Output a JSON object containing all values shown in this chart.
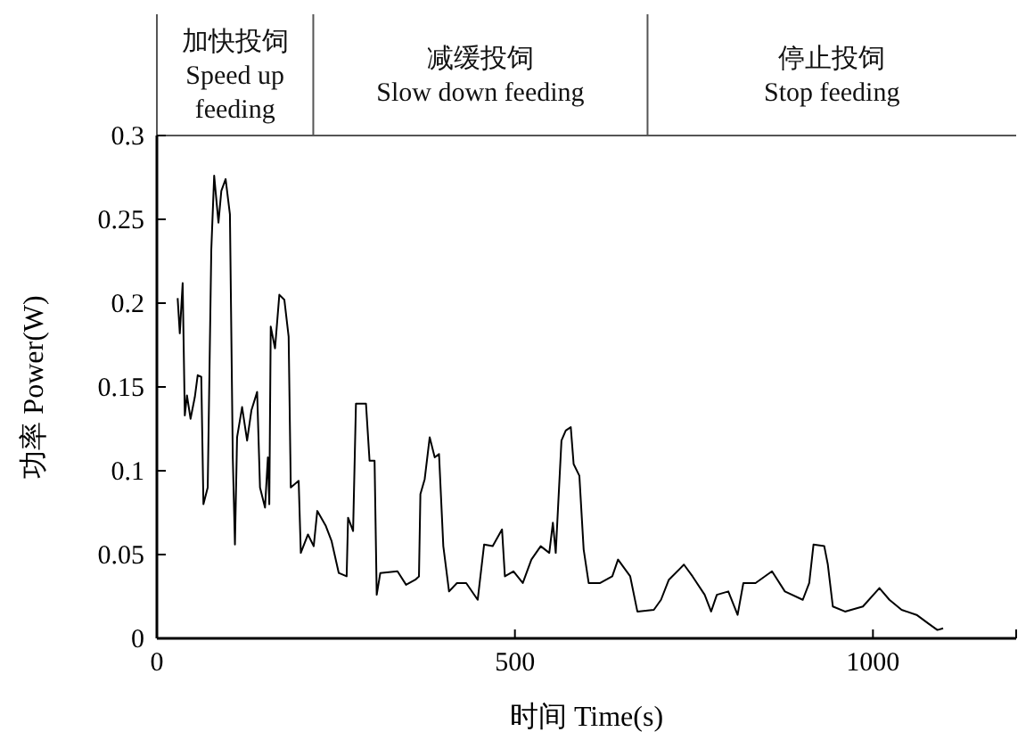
{
  "chart_data": {
    "type": "line",
    "xlabel": "时间 Time(s)",
    "ylabel": "功率 Power(W)",
    "xlim": [
      0,
      1200
    ],
    "xticks": [
      0,
      500,
      1000,
      {
        "value": 1200,
        "label": null
      }
    ],
    "ylim": [
      0,
      0.3
    ],
    "yticks": [
      0,
      0.05,
      0.1,
      0.15,
      0.2,
      0.25,
      0.3
    ],
    "marker": "none",
    "line_style": "solid",
    "annotations": [
      "加快投饲\nSpeed up feeding",
      "减缓投饲\nSlow down feeding",
      "停止投饲\nStop feeding"
    ],
    "series": [
      {
        "color": "#000000",
        "x": [
          29,
          32,
          36,
          39,
          42,
          47,
          53,
          57,
          62,
          65,
          71,
          76,
          80,
          86,
          90,
          96,
          102,
          106,
          109,
          112,
          119,
          126,
          132,
          140,
          144,
          151,
          155,
          157,
          159,
          165,
          171,
          178,
          184,
          187,
          198,
          201,
          211,
          219,
          224,
          236,
          244,
          254,
          265,
          267,
          274,
          278,
          292,
          297,
          304,
          307,
          312,
          336,
          348,
          361,
          366,
          368,
          374,
          381,
          388,
          394,
          400,
          408,
          419,
          432,
          448,
          457,
          469,
          482,
          486,
          498,
          511,
          523,
          536,
          548,
          553,
          557,
          565,
          571,
          578,
          582,
          590,
          596,
          603,
          619,
          636,
          644,
          661,
          671,
          694,
          704,
          715,
          736,
          748,
          765,
          774,
          782,
          798,
          811,
          819,
          836,
          859,
          877,
          902,
          911,
          917,
          932,
          937,
          944,
          961,
          986,
          1009,
          1023,
          1040,
          1061,
          1077,
          1090,
          1098
        ],
        "values": [
          0.203,
          0.182,
          0.212,
          0.133,
          0.145,
          0.131,
          0.144,
          0.157,
          0.156,
          0.08,
          0.09,
          0.232,
          0.276,
          0.248,
          0.267,
          0.274,
          0.253,
          0.108,
          0.056,
          0.12,
          0.138,
          0.118,
          0.136,
          0.147,
          0.09,
          0.078,
          0.108,
          0.08,
          0.186,
          0.173,
          0.205,
          0.202,
          0.18,
          0.09,
          0.094,
          0.051,
          0.062,
          0.055,
          0.076,
          0.067,
          0.058,
          0.039,
          0.037,
          0.072,
          0.064,
          0.14,
          0.14,
          0.106,
          0.106,
          0.026,
          0.039,
          0.04,
          0.032,
          0.035,
          0.037,
          0.086,
          0.095,
          0.12,
          0.108,
          0.11,
          0.055,
          0.028,
          0.033,
          0.033,
          0.023,
          0.056,
          0.055,
          0.065,
          0.037,
          0.04,
          0.033,
          0.047,
          0.055,
          0.051,
          0.069,
          0.051,
          0.118,
          0.124,
          0.126,
          0.104,
          0.097,
          0.053,
          0.033,
          0.033,
          0.037,
          0.047,
          0.037,
          0.016,
          0.017,
          0.023,
          0.035,
          0.044,
          0.037,
          0.026,
          0.016,
          0.026,
          0.028,
          0.014,
          0.033,
          0.033,
          0.04,
          0.028,
          0.023,
          0.033,
          0.056,
          0.055,
          0.044,
          0.019,
          0.016,
          0.019,
          0.03,
          0.023,
          0.017,
          0.014,
          0.009,
          0.005,
          0.006
        ]
      }
    ]
  }
}
